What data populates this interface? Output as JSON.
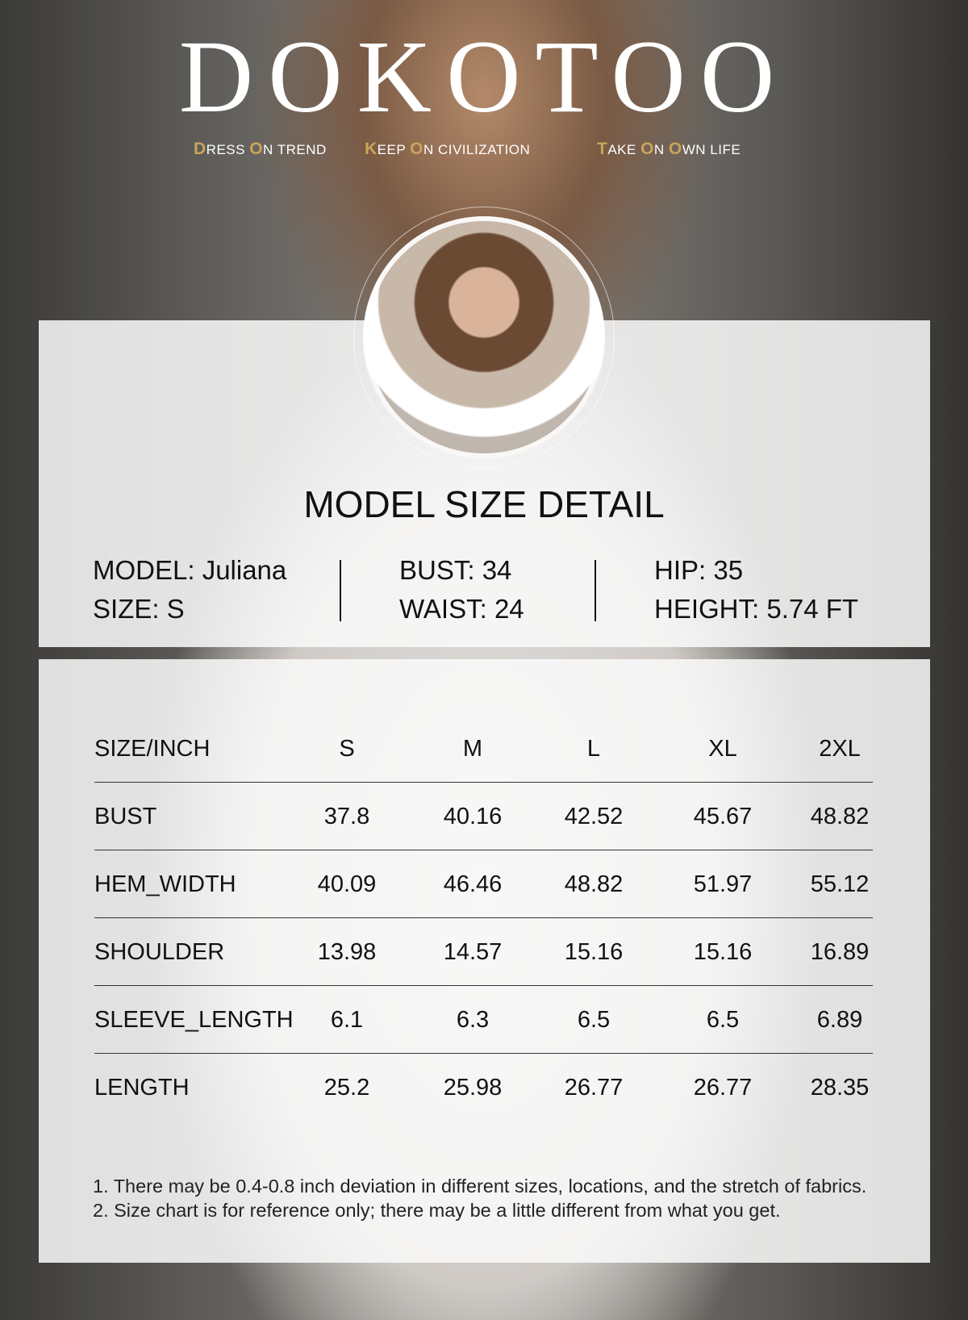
{
  "brand": {
    "logo": "DOKOTOO",
    "taglines": [
      {
        "first": "D",
        "rest": "RESS ",
        "o": "O",
        "tail": "N TREND"
      },
      {
        "first": "K",
        "rest": "EEP ",
        "o": "O",
        "tail": "N CIVILIZATION"
      },
      {
        "first": "T",
        "rest": "AKE ",
        "o": "O",
        "tail": "N ",
        "o2": "O",
        "tail2": "WN LIFE"
      }
    ],
    "accent": "#c9a55b"
  },
  "model": {
    "title": "MODEL SIZE DETAIL",
    "name": "MODEL: Juliana",
    "size": "SIZE: S",
    "bust": "BUST: 34",
    "waist": "WAIST: 24",
    "hip": "HIP: 35",
    "height": "HEIGHT: 5.74 FT"
  },
  "table": {
    "headers": [
      "SIZE/INCH",
      "S",
      "M",
      "L",
      "XL",
      "2XL"
    ],
    "rows": [
      {
        "label": "BUST",
        "values": [
          "37.8",
          "40.16",
          "42.52",
          "45.67",
          "48.82"
        ]
      },
      {
        "label": "HEM_WIDTH",
        "values": [
          "40.09",
          "46.46",
          "48.82",
          "51.97",
          "55.12"
        ]
      },
      {
        "label": "SHOULDER",
        "values": [
          "13.98",
          "14.57",
          "15.16",
          "15.16",
          "16.89"
        ]
      },
      {
        "label": "SLEEVE_LENGTH",
        "values": [
          "6.1",
          "6.3",
          "6.5",
          "6.5",
          "6.89"
        ]
      },
      {
        "label": "LENGTH",
        "values": [
          "25.2",
          "25.98",
          "26.77",
          "26.77",
          "28.35"
        ]
      }
    ]
  },
  "notes": [
    "1. There may be 0.4-0.8 inch deviation in different sizes, locations, and the stretch of fabrics.",
    "2. Size chart is for reference only; there may be a little different from what you get."
  ]
}
